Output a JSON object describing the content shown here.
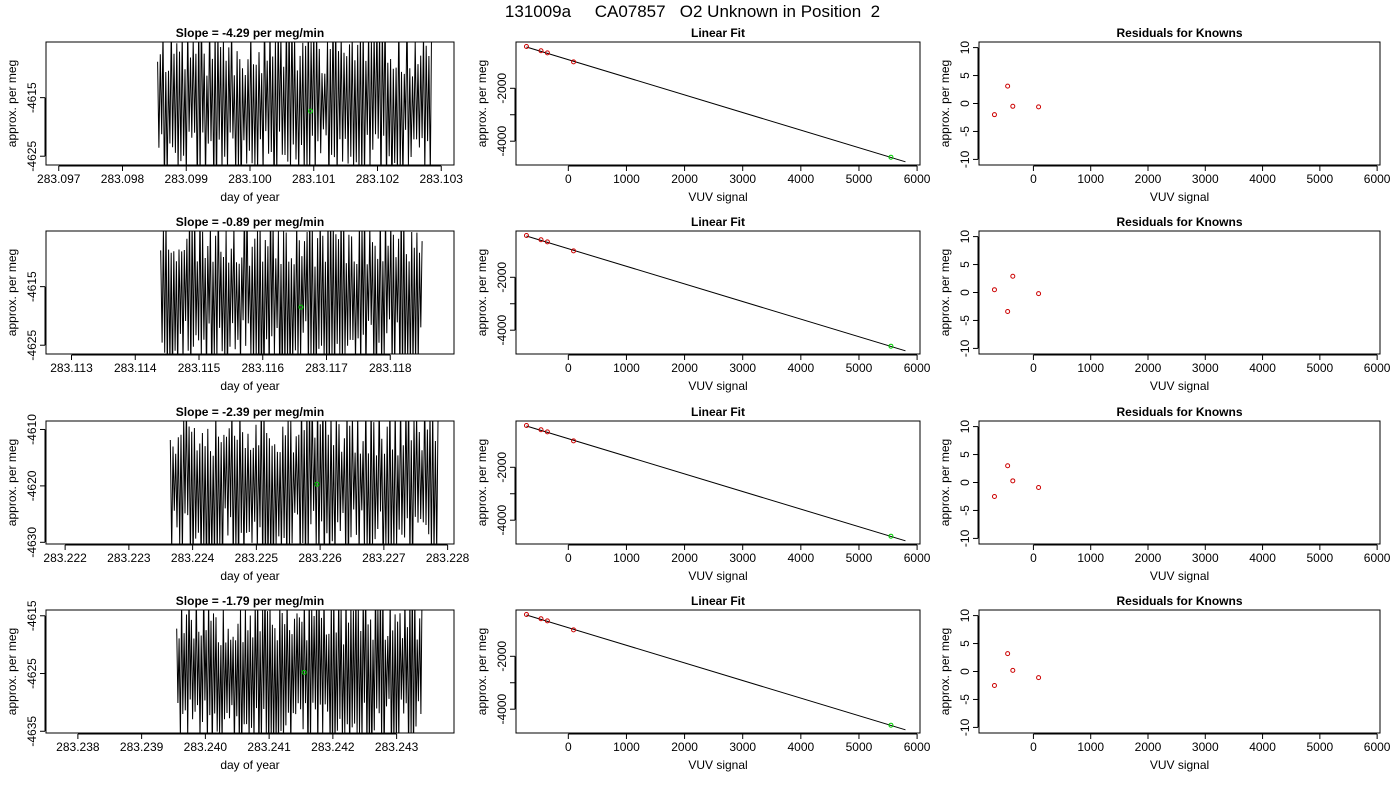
{
  "figure": {
    "title": "131009a     CA07857   O2 Unknown in Position  2"
  },
  "colors": {
    "known_points": "#cc0000",
    "unknown_point": "#00cc00",
    "lines": "#000000"
  },
  "chart_data": [
    {
      "row": 1,
      "panel": "time-series",
      "type": "line",
      "title": "Slope =  -4.29  per meg/min",
      "xlabel": "day of year",
      "ylabel": "approx. per meg",
      "xlim": [
        283.0968,
        283.1032
      ],
      "ylim": [
        -4626.5,
        -4605.5
      ],
      "x_ticks": [
        "283.097",
        "283.098",
        "283.099",
        "283.100",
        "283.101",
        "283.102",
        "283.103"
      ],
      "y_ticks": [
        "-4625",
        "-4615"
      ],
      "series_range": [
        283.09855,
        283.10285
      ],
      "unknown_point": [
        283.10095,
        -4617.3
      ],
      "seed": 11
    },
    {
      "row": 1,
      "panel": "linear-fit",
      "type": "scatter",
      "title": "Linear Fit",
      "xlabel": "VUV signal",
      "ylabel": "approx. per meg",
      "xlim": [
        -900,
        6050
      ],
      "ylim": [
        -4900,
        -250
      ],
      "x_ticks": [
        0,
        1000,
        2000,
        3000,
        4000,
        5000,
        6000
      ],
      "y_ticks": [
        -2000,
        -3000,
        -4000
      ],
      "y_tick_labels": [
        "-2000",
        "",
        "-4000"
      ],
      "known_points": [
        {
          "x": -720,
          "y": -420
        },
        {
          "x": -470,
          "y": -580
        },
        {
          "x": -360,
          "y": -660
        },
        {
          "x": 90,
          "y": -1000
        }
      ],
      "unknown_point": {
        "x": 5550,
        "y": -4605
      },
      "fit_line": {
        "x": [
          -720,
          5800
        ],
        "y": [
          -440,
          -4780
        ]
      }
    },
    {
      "row": 1,
      "panel": "residuals",
      "type": "scatter",
      "title": "Residuals for Knowns",
      "xlabel": "VUV signal",
      "ylabel": "approx. per meg",
      "xlim": [
        -950,
        6050
      ],
      "ylim": [
        -11,
        11
      ],
      "x_ticks": [
        0,
        1000,
        2000,
        3000,
        4000,
        5000,
        6000
      ],
      "y_ticks": [
        -10,
        -5,
        0,
        5,
        10
      ],
      "points": [
        {
          "x": -680,
          "y": -2.0
        },
        {
          "x": -450,
          "y": 3.1
        },
        {
          "x": -360,
          "y": -0.5
        },
        {
          "x": 90,
          "y": -0.6
        }
      ]
    },
    {
      "row": 2,
      "panel": "time-series",
      "type": "line",
      "title": "Slope =  -0.89  per meg/min",
      "xlabel": "day of year",
      "ylabel": "approx. per meg",
      "xlim": [
        283.1126,
        283.119
      ],
      "ylim": [
        -4626.5,
        -4605.5
      ],
      "x_ticks": [
        "283.113",
        "283.114",
        "283.115",
        "283.116",
        "283.117",
        "283.118"
      ],
      "y_ticks": [
        "-4625",
        "-4615"
      ],
      "series_range": [
        283.1144,
        283.1185
      ],
      "unknown_point": [
        283.1166,
        -4618.5
      ],
      "seed": 23
    },
    {
      "row": 2,
      "panel": "linear-fit",
      "type": "scatter",
      "title": "Linear Fit",
      "xlabel": "VUV signal",
      "ylabel": "approx. per meg",
      "xlim": [
        -900,
        6050
      ],
      "ylim": [
        -4900,
        -250
      ],
      "x_ticks": [
        0,
        1000,
        2000,
        3000,
        4000,
        5000,
        6000
      ],
      "y_ticks": [
        -2000,
        -3000,
        -4000
      ],
      "y_tick_labels": [
        "-2000",
        "",
        "-4000"
      ],
      "known_points": [
        {
          "x": -720,
          "y": -420
        },
        {
          "x": -470,
          "y": -580
        },
        {
          "x": -360,
          "y": -660
        },
        {
          "x": 90,
          "y": -1000
        }
      ],
      "unknown_point": {
        "x": 5550,
        "y": -4605
      },
      "fit_line": {
        "x": [
          -720,
          5800
        ],
        "y": [
          -440,
          -4780
        ]
      }
    },
    {
      "row": 2,
      "panel": "residuals",
      "type": "scatter",
      "title": "Residuals for Knowns",
      "xlabel": "VUV signal",
      "ylabel": "approx. per meg",
      "xlim": [
        -950,
        6050
      ],
      "ylim": [
        -11,
        11
      ],
      "x_ticks": [
        0,
        1000,
        2000,
        3000,
        4000,
        5000,
        6000
      ],
      "y_ticks": [
        -10,
        -5,
        0,
        5,
        10
      ],
      "points": [
        {
          "x": -680,
          "y": 0.5
        },
        {
          "x": -450,
          "y": -3.4
        },
        {
          "x": -360,
          "y": 2.9
        },
        {
          "x": 90,
          "y": -0.2
        }
      ]
    },
    {
      "row": 3,
      "panel": "time-series",
      "type": "line",
      "title": "Slope =  -2.39  per meg/min",
      "xlabel": "day of year",
      "ylabel": "approx. per meg",
      "xlim": [
        283.2217,
        283.2281
      ],
      "ylim": [
        -4630.3,
        -4608.5
      ],
      "x_ticks": [
        "283.222",
        "283.223",
        "283.224",
        "283.225",
        "283.226",
        "283.227",
        "283.228"
      ],
      "y_ticks": [
        "-4630",
        "-4620",
        "-4610"
      ],
      "series_range": [
        283.22365,
        283.22785
      ],
      "unknown_point": [
        283.22595,
        -4619.7
      ],
      "seed": 37
    },
    {
      "row": 3,
      "panel": "linear-fit",
      "type": "scatter",
      "title": "Linear Fit",
      "xlabel": "VUV signal",
      "ylabel": "approx. per meg",
      "xlim": [
        -900,
        6050
      ],
      "ylim": [
        -4900,
        -250
      ],
      "x_ticks": [
        0,
        1000,
        2000,
        3000,
        4000,
        5000,
        6000
      ],
      "y_ticks": [
        -2000,
        -3000,
        -4000
      ],
      "y_tick_labels": [
        "-2000",
        "",
        "-4000"
      ],
      "known_points": [
        {
          "x": -720,
          "y": -420
        },
        {
          "x": -470,
          "y": -580
        },
        {
          "x": -360,
          "y": -660
        },
        {
          "x": 90,
          "y": -1000
        }
      ],
      "unknown_point": {
        "x": 5550,
        "y": -4605
      },
      "fit_line": {
        "x": [
          -720,
          5800
        ],
        "y": [
          -440,
          -4780
        ]
      }
    },
    {
      "row": 3,
      "panel": "residuals",
      "type": "scatter",
      "title": "Residuals for Knowns",
      "xlabel": "VUV signal",
      "ylabel": "approx. per meg",
      "xlim": [
        -950,
        6050
      ],
      "ylim": [
        -11,
        11
      ],
      "x_ticks": [
        0,
        1000,
        2000,
        3000,
        4000,
        5000,
        6000
      ],
      "y_ticks": [
        -10,
        -5,
        0,
        5,
        10
      ],
      "points": [
        {
          "x": -680,
          "y": -2.5
        },
        {
          "x": -450,
          "y": 3.0
        },
        {
          "x": -360,
          "y": 0.3
        },
        {
          "x": 90,
          "y": -0.9
        }
      ]
    },
    {
      "row": 4,
      "panel": "time-series",
      "type": "line",
      "title": "Slope =  -1.79  per meg/min",
      "xlabel": "day of year",
      "ylabel": "approx. per meg",
      "xlim": [
        283.2375,
        283.2439
      ],
      "ylim": [
        -4635.3,
        -4614.0
      ],
      "x_ticks": [
        "283.238",
        "283.239",
        "283.240",
        "283.241",
        "283.242",
        "283.243"
      ],
      "y_ticks": [
        "-4635",
        "-4625",
        "-4615"
      ],
      "series_range": [
        283.23955,
        283.2434
      ],
      "unknown_point": [
        283.24155,
        -4624.8
      ],
      "seed": 53
    },
    {
      "row": 4,
      "panel": "linear-fit",
      "type": "scatter",
      "title": "Linear Fit",
      "xlabel": "VUV signal",
      "ylabel": "approx. per meg",
      "xlim": [
        -900,
        6050
      ],
      "ylim": [
        -4900,
        -250
      ],
      "x_ticks": [
        0,
        1000,
        2000,
        3000,
        4000,
        5000,
        6000
      ],
      "y_ticks": [
        -2000,
        -3000,
        -4000
      ],
      "y_tick_labels": [
        "-2000",
        "",
        "-4000"
      ],
      "known_points": [
        {
          "x": -720,
          "y": -420
        },
        {
          "x": -470,
          "y": -580
        },
        {
          "x": -360,
          "y": -660
        },
        {
          "x": 90,
          "y": -1000
        }
      ],
      "unknown_point": {
        "x": 5550,
        "y": -4605
      },
      "fit_line": {
        "x": [
          -720,
          5800
        ],
        "y": [
          -440,
          -4780
        ]
      }
    },
    {
      "row": 4,
      "panel": "residuals",
      "type": "scatter",
      "title": "Residuals for Knowns",
      "xlabel": "VUV signal",
      "ylabel": "approx. per meg",
      "xlim": [
        -950,
        6050
      ],
      "ylim": [
        -11,
        11
      ],
      "x_ticks": [
        0,
        1000,
        2000,
        3000,
        4000,
        5000,
        6000
      ],
      "y_ticks": [
        -10,
        -5,
        0,
        5,
        10
      ],
      "points": [
        {
          "x": -680,
          "y": -2.5
        },
        {
          "x": -450,
          "y": 3.2
        },
        {
          "x": -360,
          "y": 0.2
        },
        {
          "x": 90,
          "y": -1.1
        }
      ]
    }
  ]
}
